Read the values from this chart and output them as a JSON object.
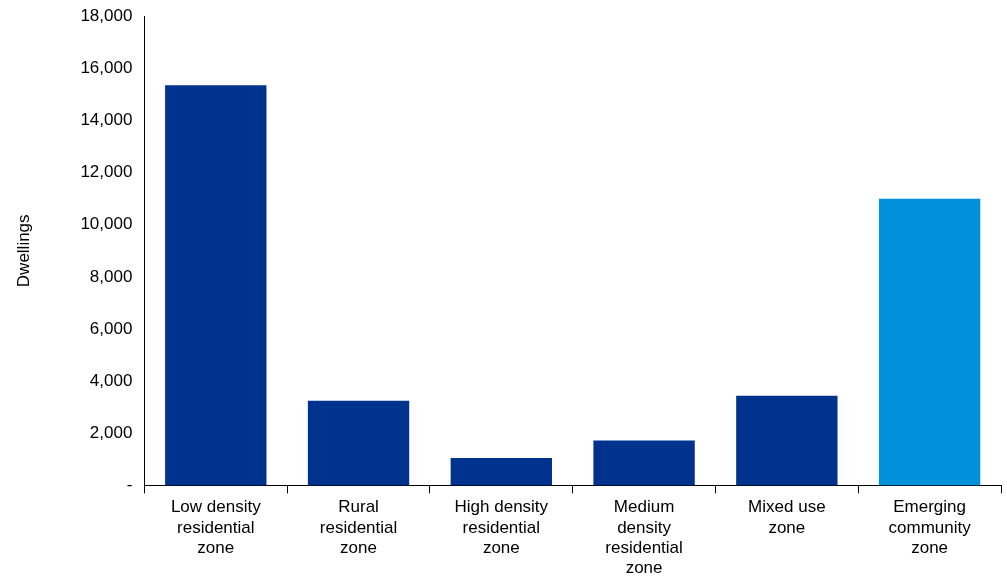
{
  "chart_data": {
    "type": "bar",
    "ylabel": "Dwellings",
    "categories": [
      "Low density residential zone",
      "Rural residential zone",
      "High density residential zone",
      "Medium density residential zone",
      "Mixed use zone",
      "Emerging community zone"
    ],
    "values": [
      15350,
      3250,
      1050,
      1720,
      3440,
      11000
    ],
    "colors": [
      "#00338d",
      "#00338d",
      "#00338d",
      "#00338d",
      "#00338d",
      "#0091da"
    ],
    "ylim": [
      0,
      18000
    ],
    "yticks": [
      {
        "value": 0,
        "label": "-"
      },
      {
        "value": 2000,
        "label": "2,000"
      },
      {
        "value": 4000,
        "label": "4,000"
      },
      {
        "value": 6000,
        "label": "6,000"
      },
      {
        "value": 8000,
        "label": "8,000"
      },
      {
        "value": 10000,
        "label": "10,000"
      },
      {
        "value": 12000,
        "label": "12,000"
      },
      {
        "value": 14000,
        "label": "14,000"
      },
      {
        "value": 16000,
        "label": "16,000"
      },
      {
        "value": 18000,
        "label": "18,000"
      }
    ],
    "grid": false,
    "legend": false
  }
}
